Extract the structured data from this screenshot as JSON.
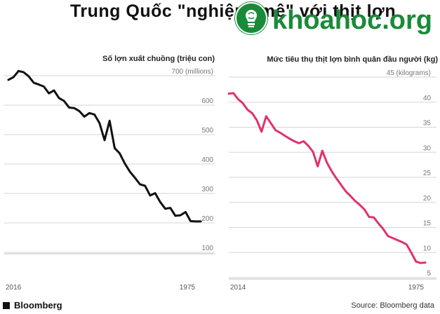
{
  "header": {
    "title": "Trung Quốc \"nghiện\" mê\" với thịt lợn",
    "logo_text": "khoahoc.org",
    "logo_icon": "brain-bulb-icon"
  },
  "footer": {
    "brand": "Bloomberg",
    "source": "Source: Bloomberg data"
  },
  "colors": {
    "left_series": "#111111",
    "right_series": "#e0316f",
    "logo": "#1a8a3a"
  },
  "chart_data": [
    {
      "type": "line",
      "title": "Số lợn xuất chuồng (triệu con)",
      "x_range_labels": [
        "2016",
        "1975"
      ],
      "unit_label": "700 (millions)",
      "yticks": [
        100,
        200,
        300,
        400,
        500,
        600,
        700
      ],
      "ylim": [
        100,
        700
      ],
      "series": [
        {
          "values": [
            686,
            695,
            716,
            712,
            698,
            676,
            670,
            663,
            640,
            650,
            624,
            614,
            592,
            590,
            580,
            561,
            573,
            568,
            539,
            481,
            547,
            454,
            436,
            402,
            374,
            353,
            331,
            326,
            293,
            301,
            271,
            248,
            251,
            224,
            226,
            237,
            206,
            205,
            205
          ]
        }
      ]
    },
    {
      "type": "line",
      "title": "Mức tiêu thụ thịt lợn bình quân đầu người (kg)",
      "x_range_labels": [
        "2014",
        "1975"
      ],
      "unit_label": "45 (kilograms)",
      "yticks": [
        5,
        10,
        15,
        20,
        25,
        30,
        35,
        40,
        45
      ],
      "ylim": [
        5,
        45
      ],
      "series": [
        {
          "values": [
            41.7,
            41.8,
            40.6,
            39.8,
            38.5,
            37.8,
            36.4,
            34.1,
            37.2,
            35.8,
            34.4,
            33.9,
            33.3,
            32.7,
            32.2,
            31.8,
            32.2,
            31.3,
            30.1,
            27.2,
            30.3,
            27.9,
            26.2,
            24.8,
            23.5,
            22.2,
            21.3,
            20.3,
            19.5,
            18.6,
            17.1,
            17.0,
            15.8,
            14.7,
            13.3,
            12.9,
            12.5,
            12.1,
            11.6,
            10.0,
            8.2,
            7.9,
            8.0
          ]
        }
      ]
    }
  ]
}
